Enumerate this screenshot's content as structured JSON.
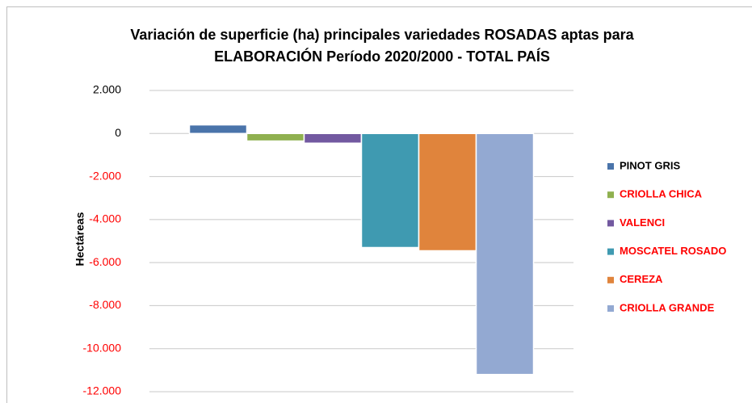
{
  "chart_data": {
    "type": "bar",
    "title_lines": [
      "Variación de superficie (ha) principales variedades ROSADAS aptas para",
      "ELABORACIÓN Período 2020/2000 - TOTAL PAÍS"
    ],
    "y_label": "Hectáreas",
    "categories": [
      null
    ],
    "series": [
      {
        "name": "PINOT GRIS",
        "color": "#4a74aa",
        "label_color": "#000000",
        "values": [
          400
        ]
      },
      {
        "name": "CRIOLLA CHICA",
        "color": "#8fb04f",
        "label_color": "#ff0000",
        "values": [
          -350
        ]
      },
      {
        "name": "VALENCI",
        "color": "#7259a0",
        "label_color": "#ff0000",
        "values": [
          -450
        ]
      },
      {
        "name": "MOSCATEL ROSADO",
        "color": "#3f9ab1",
        "label_color": "#ff0000",
        "values": [
          -5300
        ]
      },
      {
        "name": "CEREZA",
        "color": "#e0843c",
        "label_color": "#ff0000",
        "values": [
          -5450
        ]
      },
      {
        "name": "CRIOLLA GRANDE",
        "color": "#93a9d2",
        "label_color": "#ff0000",
        "values": [
          -11200
        ]
      }
    ],
    "ylim": [
      -12000,
      2000
    ],
    "yticks": [
      {
        "value": 2000,
        "label": "2.000"
      },
      0,
      {
        "value": -2000,
        "label": "-2.000"
      },
      {
        "value": -4000,
        "label": "-4.000"
      },
      {
        "value": -6000,
        "label": "-6.000"
      },
      {
        "value": -8000,
        "label": "-8.000"
      },
      {
        "value": -10000,
        "label": "-10.000"
      },
      {
        "value": -12000,
        "label": "-12.000"
      }
    ],
    "negative_tick_color": "#ff0000",
    "grid": true,
    "legend": "right"
  }
}
